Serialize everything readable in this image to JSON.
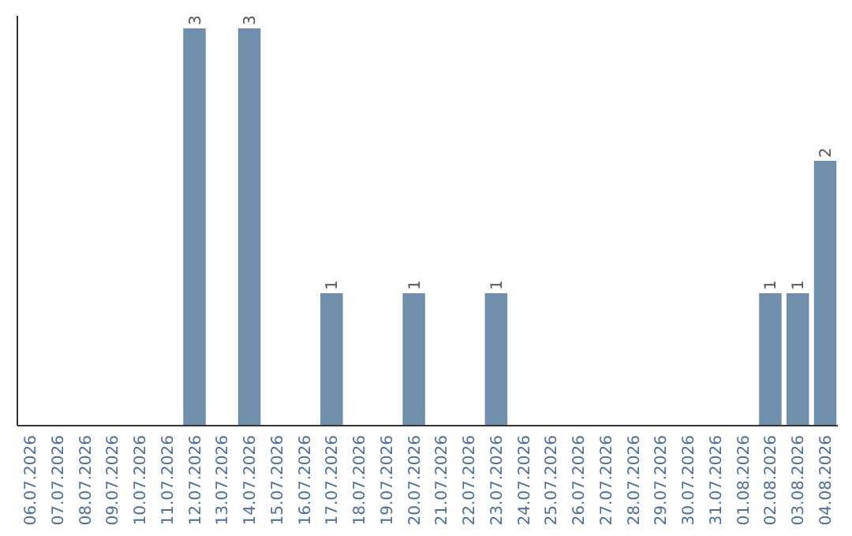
{
  "chart_data": {
    "type": "bar",
    "categories": [
      "06.07.2026",
      "07.07.2026",
      "08.07.2026",
      "09.07.2026",
      "10.07.2026",
      "11.07.2026",
      "12.07.2026",
      "13.07.2026",
      "14.07.2026",
      "15.07.2026",
      "16.07.2026",
      "17.07.2026",
      "18.07.2026",
      "19.07.2026",
      "20.07.2026",
      "21.07.2026",
      "22.07.2026",
      "23.07.2026",
      "24.07.2026",
      "25.07.2026",
      "26.07.2026",
      "27.07.2026",
      "28.07.2026",
      "29.07.2026",
      "30.07.2026",
      "31.07.2026",
      "01.08.2026",
      "02.08.2026",
      "03.08.2026",
      "04.08.2026"
    ],
    "values": [
      0,
      0,
      0,
      0,
      0,
      0,
      3,
      0,
      3,
      0,
      0,
      1,
      0,
      0,
      1,
      0,
      0,
      1,
      0,
      0,
      0,
      0,
      0,
      0,
      0,
      0,
      0,
      1,
      1,
      2
    ],
    "value_labels": [
      null,
      null,
      null,
      null,
      null,
      null,
      "3",
      null,
      "3",
      null,
      null,
      "1",
      null,
      null,
      "1",
      null,
      null,
      "1",
      null,
      null,
      null,
      null,
      null,
      null,
      null,
      null,
      null,
      "1",
      "1",
      "2"
    ],
    "color": "#6f8fad",
    "tick_labels": "x"
  }
}
